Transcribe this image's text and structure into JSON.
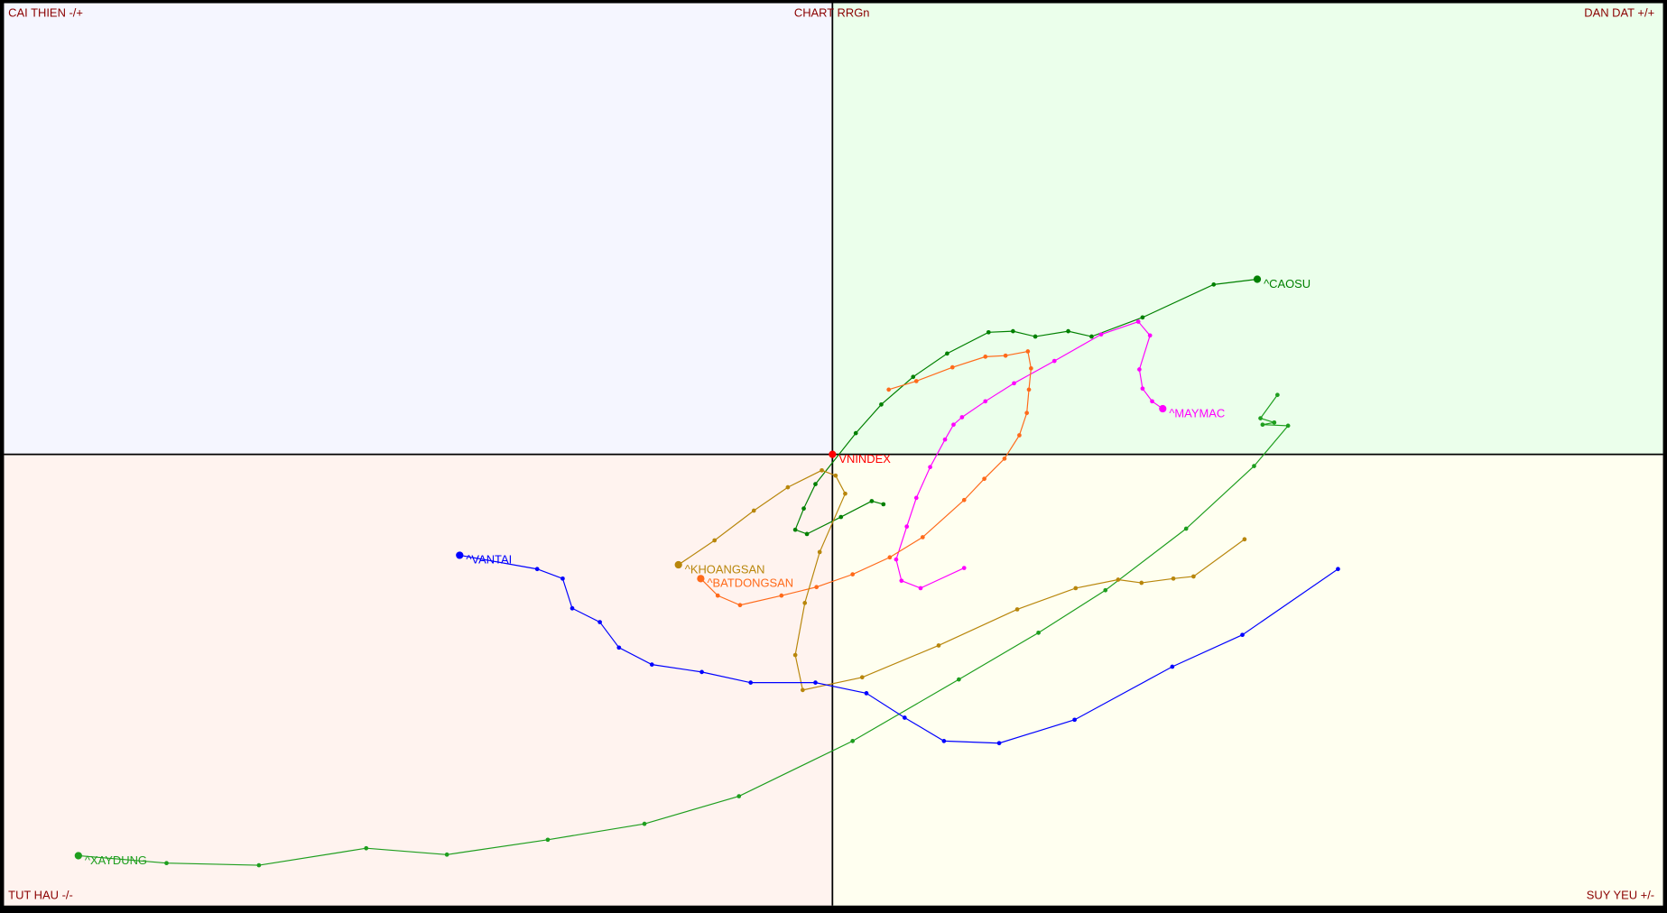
{
  "chart_data": {
    "type": "line",
    "title": "CHART RRGn",
    "quadrant_labels": {
      "top_left": "CAI THIEN -/+",
      "top_right": "DAN DAT +/+",
      "bottom_left": "TUT HAU -/-",
      "bottom_right": "SUY YEU +/-"
    },
    "xlim": [
      -780,
      782
    ],
    "ylim": [
      -425,
      425
    ],
    "series": [
      {
        "name": "^CAOSU",
        "color": "#008000",
        "x": [
          48,
          37,
          8,
          -24,
          -35,
          -27,
          -16,
          22,
          46,
          76,
          108,
          147,
          170,
          191,
          222,
          244,
          292,
          359,
          400
        ],
        "y": [
          -47,
          -44,
          -59,
          -75,
          -71,
          -51,
          -28,
          20,
          47,
          73,
          95,
          115,
          116,
          111,
          116,
          111,
          129,
          160,
          165
        ]
      },
      {
        "name": "^XAYDUNG",
        "color": "#1e9e1e",
        "x": [
          419,
          403,
          416,
          405,
          429,
          397,
          333,
          257,
          194,
          119,
          19,
          -88,
          -177,
          -268,
          -363,
          -439,
          -540,
          -627,
          -710
        ],
        "y": [
          56,
          34,
          30,
          28,
          27,
          -11,
          -70,
          -128,
          -168,
          -212,
          -270,
          -322,
          -348,
          -363,
          -377,
          -371,
          -387,
          -385,
          -378
        ]
      },
      {
        "name": "^MAYMAC",
        "color": "#ff00ff",
        "x": [
          124,
          83,
          65,
          60,
          70,
          79,
          92,
          106,
          114,
          122,
          144,
          171,
          209,
          253,
          288,
          299,
          289,
          292,
          301,
          311
        ],
        "y": [
          -107,
          -126,
          -119,
          -99,
          -68,
          -41,
          -12,
          14,
          28,
          35,
          50,
          67,
          88,
          113,
          125,
          112,
          80,
          62,
          50,
          43
        ]
      },
      {
        "name": "^BATDONGSAN",
        "color": "#ff6a1a",
        "x": [
          53,
          79,
          113,
          144,
          163,
          184,
          187,
          185,
          183,
          176,
          162,
          143,
          124,
          85,
          54,
          19,
          -15,
          -48,
          -87,
          -108,
          -124
        ],
        "y": [
          61,
          69,
          82,
          92,
          93,
          97,
          81,
          61,
          39,
          18,
          -4,
          -23,
          -43,
          -78,
          -97,
          -113,
          -125,
          -133,
          -142,
          -133,
          -117
        ]
      },
      {
        "name": "^KHOANGSAN",
        "color": "#b8860b",
        "x": [
          388,
          340,
          321,
          291,
          269,
          229,
          174,
          100,
          28,
          -28,
          -35,
          -26,
          -12,
          12,
          3,
          -10,
          -42,
          -74,
          -111,
          -145
        ],
        "y": [
          -80,
          -115,
          -117,
          -121,
          -118,
          -126,
          -146,
          -180,
          -210,
          -222,
          -189,
          -140,
          -92,
          -37,
          -20,
          -15,
          -31,
          -53,
          -81,
          -104
        ]
      },
      {
        "name": "^VANTAI",
        "color": "#0000ff",
        "x": [
          476,
          386,
          320,
          228,
          157,
          105,
          68,
          32,
          -16,
          -77,
          -123,
          -170,
          -201,
          -219,
          -245,
          -254,
          -278,
          -351
        ],
        "y": [
          -108,
          -170,
          -200,
          -250,
          -272,
          -270,
          -248,
          -225,
          -215,
          -215,
          -205,
          -198,
          -182,
          -158,
          -145,
          -117,
          -108,
          -95
        ]
      },
      {
        "name": "VNINDEX",
        "color": "#ff0000",
        "x": [
          0
        ],
        "y": [
          0
        ]
      }
    ]
  }
}
